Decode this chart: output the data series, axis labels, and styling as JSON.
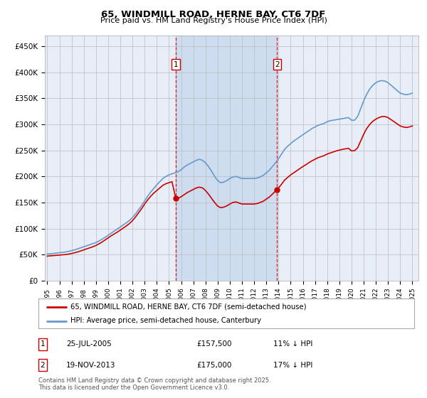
{
  "title": "65, WINDMILL ROAD, HERNE BAY, CT6 7DF",
  "subtitle": "Price paid vs. HM Land Registry's House Price Index (HPI)",
  "ylabel_ticks": [
    "£0",
    "£50K",
    "£100K",
    "£150K",
    "£200K",
    "£250K",
    "£300K",
    "£350K",
    "£400K",
    "£450K"
  ],
  "ytick_values": [
    0,
    50000,
    100000,
    150000,
    200000,
    250000,
    300000,
    350000,
    400000,
    450000
  ],
  "ylim": [
    0,
    470000
  ],
  "xlim_start": 1994.8,
  "xlim_end": 2025.5,
  "background_color": "#ffffff",
  "plot_bg_color": "#e8eef8",
  "grid_color": "#bbbbbb",
  "sale1_x": 2005.56,
  "sale1_y": 157500,
  "sale1_label": "1",
  "sale1_date": "25-JUL-2005",
  "sale1_price": "£157,500",
  "sale1_hpi": "11% ↓ HPI",
  "sale2_x": 2013.89,
  "sale2_y": 175000,
  "sale2_label": "2",
  "sale2_date": "19-NOV-2013",
  "sale2_price": "£175,000",
  "sale2_hpi": "17% ↓ HPI",
  "red_line_color": "#cc0000",
  "blue_line_color": "#6699cc",
  "legend_label_red": "65, WINDMILL ROAD, HERNE BAY, CT6 7DF (semi-detached house)",
  "legend_label_blue": "HPI: Average price, semi-detached house, Canterbury",
  "footer_text": "Contains HM Land Registry data © Crown copyright and database right 2025.\nThis data is licensed under the Open Government Licence v3.0.",
  "hpi_years": [
    1995,
    1995.25,
    1995.5,
    1995.75,
    1996,
    1996.25,
    1996.5,
    1996.75,
    1997,
    1997.25,
    1997.5,
    1997.75,
    1998,
    1998.25,
    1998.5,
    1998.75,
    1999,
    1999.25,
    1999.5,
    1999.75,
    2000,
    2000.25,
    2000.5,
    2000.75,
    2001,
    2001.25,
    2001.5,
    2001.75,
    2002,
    2002.25,
    2002.5,
    2002.75,
    2003,
    2003.25,
    2003.5,
    2003.75,
    2004,
    2004.25,
    2004.5,
    2004.75,
    2005,
    2005.25,
    2005.5,
    2005.75,
    2006,
    2006.25,
    2006.5,
    2006.75,
    2007,
    2007.25,
    2007.5,
    2007.75,
    2008,
    2008.25,
    2008.5,
    2008.75,
    2009,
    2009.25,
    2009.5,
    2009.75,
    2010,
    2010.25,
    2010.5,
    2010.75,
    2011,
    2011.25,
    2011.5,
    2011.75,
    2012,
    2012.25,
    2012.5,
    2012.75,
    2013,
    2013.25,
    2013.5,
    2013.75,
    2014,
    2014.25,
    2014.5,
    2014.75,
    2015,
    2015.25,
    2015.5,
    2015.75,
    2016,
    2016.25,
    2016.5,
    2016.75,
    2017,
    2017.25,
    2017.5,
    2017.75,
    2018,
    2018.25,
    2018.5,
    2018.75,
    2019,
    2019.25,
    2019.5,
    2019.75,
    2020,
    2020.25,
    2020.5,
    2020.75,
    2021,
    2021.25,
    2021.5,
    2021.75,
    2022,
    2022.25,
    2022.5,
    2022.75,
    2023,
    2023.25,
    2023.5,
    2023.75,
    2024,
    2024.25,
    2024.5,
    2024.75,
    2025
  ],
  "hpi_values": [
    51000,
    51500,
    52000,
    52800,
    53500,
    54200,
    55000,
    56000,
    57500,
    59000,
    61000,
    63000,
    65000,
    67000,
    69000,
    71000,
    73000,
    76000,
    79500,
    83000,
    87000,
    91000,
    95000,
    99000,
    103000,
    107000,
    111000,
    115500,
    121000,
    128000,
    136000,
    144000,
    153000,
    162000,
    170000,
    177000,
    184000,
    190000,
    196000,
    200000,
    203000,
    205000,
    207000,
    209000,
    213000,
    218000,
    222000,
    225000,
    228000,
    231000,
    233000,
    231000,
    226000,
    219000,
    210000,
    200000,
    192000,
    188000,
    189000,
    192000,
    196000,
    199000,
    200000,
    198000,
    196000,
    196000,
    196000,
    196000,
    196000,
    197000,
    199000,
    202000,
    207000,
    212000,
    219000,
    226000,
    234000,
    243000,
    252000,
    258000,
    263000,
    268000,
    272000,
    276000,
    280000,
    284000,
    288000,
    292000,
    295000,
    298000,
    300000,
    302000,
    305000,
    307000,
    308000,
    309000,
    310000,
    311000,
    312000,
    313000,
    308000,
    308000,
    315000,
    330000,
    345000,
    358000,
    368000,
    375000,
    380000,
    383000,
    384000,
    383000,
    380000,
    375000,
    370000,
    365000,
    360000,
    358000,
    357000,
    358000,
    360000
  ],
  "red_years": [
    1995,
    1995.25,
    1995.5,
    1995.75,
    1996,
    1996.25,
    1996.5,
    1996.75,
    1997,
    1997.25,
    1997.5,
    1997.75,
    1998,
    1998.25,
    1998.5,
    1998.75,
    1999,
    1999.25,
    1999.5,
    1999.75,
    2000,
    2000.25,
    2000.5,
    2000.75,
    2001,
    2001.25,
    2001.5,
    2001.75,
    2002,
    2002.25,
    2002.5,
    2002.75,
    2003,
    2003.25,
    2003.5,
    2003.75,
    2004,
    2004.25,
    2004.5,
    2004.75,
    2005,
    2005.25,
    2005.56,
    2005.75,
    2006,
    2006.25,
    2006.5,
    2006.75,
    2007,
    2007.25,
    2007.5,
    2007.75,
    2008,
    2008.25,
    2008.5,
    2008.75,
    2009,
    2009.25,
    2009.5,
    2009.75,
    2010,
    2010.25,
    2010.5,
    2010.75,
    2011,
    2011.25,
    2011.5,
    2011.75,
    2012,
    2012.25,
    2012.5,
    2012.75,
    2013,
    2013.25,
    2013.5,
    2013.89,
    2014,
    2014.25,
    2014.5,
    2014.75,
    2015,
    2015.25,
    2015.5,
    2015.75,
    2016,
    2016.25,
    2016.5,
    2016.75,
    2017,
    2017.25,
    2017.5,
    2017.75,
    2018,
    2018.25,
    2018.5,
    2018.75,
    2019,
    2019.25,
    2019.5,
    2019.75,
    2020,
    2020.25,
    2020.5,
    2020.75,
    2021,
    2021.25,
    2021.5,
    2021.75,
    2022,
    2022.25,
    2022.5,
    2022.75,
    2023,
    2023.25,
    2023.5,
    2023.75,
    2024,
    2024.25,
    2024.5,
    2024.75,
    2025
  ],
  "red_values": [
    47000,
    47500,
    48000,
    48500,
    49000,
    49500,
    50000,
    50800,
    52000,
    53500,
    55000,
    57000,
    59000,
    61000,
    63000,
    65000,
    67500,
    70500,
    74000,
    78000,
    82000,
    86000,
    89500,
    93000,
    97000,
    101000,
    105000,
    109500,
    115000,
    122000,
    130000,
    138000,
    147000,
    155000,
    162000,
    168000,
    173000,
    178000,
    183000,
    186000,
    188000,
    190000,
    157500,
    158000,
    161000,
    165000,
    169000,
    172000,
    175000,
    178000,
    179500,
    178000,
    173000,
    166000,
    158000,
    150000,
    143000,
    140000,
    141000,
    143500,
    147000,
    150000,
    151000,
    149000,
    147000,
    147000,
    147000,
    147000,
    147000,
    148000,
    150000,
    152500,
    156500,
    160500,
    166000,
    175000,
    178000,
    185000,
    193000,
    198000,
    203000,
    207000,
    211000,
    215000,
    219000,
    222500,
    226500,
    230000,
    233000,
    236000,
    238000,
    240000,
    243000,
    245000,
    247000,
    249000,
    250500,
    252000,
    253000,
    254000,
    249000,
    249500,
    255000,
    268000,
    281000,
    292000,
    300000,
    306000,
    310000,
    313000,
    315000,
    315000,
    313000,
    309000,
    305000,
    301000,
    297000,
    295000,
    294000,
    295000,
    297000
  ]
}
